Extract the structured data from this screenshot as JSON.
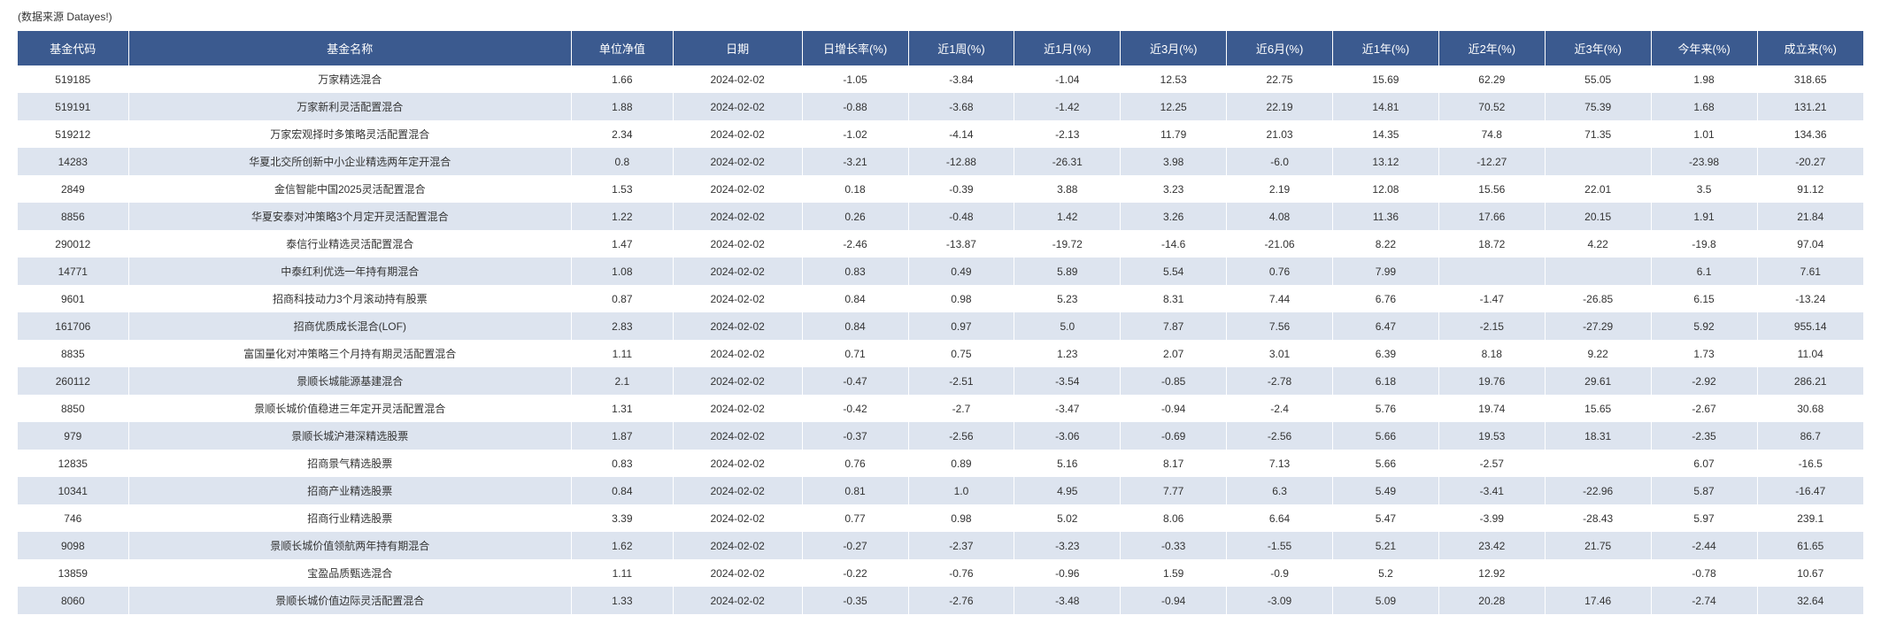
{
  "source_note": "(数据来源 Datayes!)",
  "colors": {
    "header_bg": "#3b5a8f",
    "header_text": "#ffffff",
    "row_odd_bg": "#ffffff",
    "row_even_bg": "#dde4ef",
    "cell_text": "#333333"
  },
  "table": {
    "columns": [
      "基金代码",
      "基金名称",
      "单位净值",
      "日期",
      "日增长率(%)",
      "近1周(%)",
      "近1月(%)",
      "近3月(%)",
      "近6月(%)",
      "近1年(%)",
      "近2年(%)",
      "近3年(%)",
      "今年来(%)",
      "成立来(%)"
    ],
    "column_widths": [
      "6%",
      "24%",
      "5.5%",
      "7%",
      "5.75%",
      "5.75%",
      "5.75%",
      "5.75%",
      "5.75%",
      "5.75%",
      "5.75%",
      "5.75%",
      "5.75%",
      "5.75%"
    ],
    "rows": [
      [
        "519185",
        "万家精选混合",
        "1.66",
        "2024-02-02",
        "-1.05",
        "-3.84",
        "-1.04",
        "12.53",
        "22.75",
        "15.69",
        "62.29",
        "55.05",
        "1.98",
        "318.65"
      ],
      [
        "519191",
        "万家新利灵活配置混合",
        "1.88",
        "2024-02-02",
        "-0.88",
        "-3.68",
        "-1.42",
        "12.25",
        "22.19",
        "14.81",
        "70.52",
        "75.39",
        "1.68",
        "131.21"
      ],
      [
        "519212",
        "万家宏观择时多策略灵活配置混合",
        "2.34",
        "2024-02-02",
        "-1.02",
        "-4.14",
        "-2.13",
        "11.79",
        "21.03",
        "14.35",
        "74.8",
        "71.35",
        "1.01",
        "134.36"
      ],
      [
        "14283",
        "华夏北交所创新中小企业精选两年定开混合",
        "0.8",
        "2024-02-02",
        "-3.21",
        "-12.88",
        "-26.31",
        "3.98",
        "-6.0",
        "13.12",
        "-12.27",
        "",
        "-23.98",
        "-20.27"
      ],
      [
        "2849",
        "金信智能中国2025灵活配置混合",
        "1.53",
        "2024-02-02",
        "0.18",
        "-0.39",
        "3.88",
        "3.23",
        "2.19",
        "12.08",
        "15.56",
        "22.01",
        "3.5",
        "91.12"
      ],
      [
        "8856",
        "华夏安泰对冲策略3个月定开灵活配置混合",
        "1.22",
        "2024-02-02",
        "0.26",
        "-0.48",
        "1.42",
        "3.26",
        "4.08",
        "11.36",
        "17.66",
        "20.15",
        "1.91",
        "21.84"
      ],
      [
        "290012",
        "泰信行业精选灵活配置混合",
        "1.47",
        "2024-02-02",
        "-2.46",
        "-13.87",
        "-19.72",
        "-14.6",
        "-21.06",
        "8.22",
        "18.72",
        "4.22",
        "-19.8",
        "97.04"
      ],
      [
        "14771",
        "中泰红利优选一年持有期混合",
        "1.08",
        "2024-02-02",
        "0.83",
        "0.49",
        "5.89",
        "5.54",
        "0.76",
        "7.99",
        "",
        "",
        "6.1",
        "7.61"
      ],
      [
        "9601",
        "招商科技动力3个月滚动持有股票",
        "0.87",
        "2024-02-02",
        "0.84",
        "0.98",
        "5.23",
        "8.31",
        "7.44",
        "6.76",
        "-1.47",
        "-26.85",
        "6.15",
        "-13.24"
      ],
      [
        "161706",
        "招商优质成长混合(LOF)",
        "2.83",
        "2024-02-02",
        "0.84",
        "0.97",
        "5.0",
        "7.87",
        "7.56",
        "6.47",
        "-2.15",
        "-27.29",
        "5.92",
        "955.14"
      ],
      [
        "8835",
        "富国量化对冲策略三个月持有期灵活配置混合",
        "1.11",
        "2024-02-02",
        "0.71",
        "0.75",
        "1.23",
        "2.07",
        "3.01",
        "6.39",
        "8.18",
        "9.22",
        "1.73",
        "11.04"
      ],
      [
        "260112",
        "景顺长城能源基建混合",
        "2.1",
        "2024-02-02",
        "-0.47",
        "-2.51",
        "-3.54",
        "-0.85",
        "-2.78",
        "6.18",
        "19.76",
        "29.61",
        "-2.92",
        "286.21"
      ],
      [
        "8850",
        "景顺长城价值稳进三年定开灵活配置混合",
        "1.31",
        "2024-02-02",
        "-0.42",
        "-2.7",
        "-3.47",
        "-0.94",
        "-2.4",
        "5.76",
        "19.74",
        "15.65",
        "-2.67",
        "30.68"
      ],
      [
        "979",
        "景顺长城沪港深精选股票",
        "1.87",
        "2024-02-02",
        "-0.37",
        "-2.56",
        "-3.06",
        "-0.69",
        "-2.56",
        "5.66",
        "19.53",
        "18.31",
        "-2.35",
        "86.7"
      ],
      [
        "12835",
        "招商景气精选股票",
        "0.83",
        "2024-02-02",
        "0.76",
        "0.89",
        "5.16",
        "8.17",
        "7.13",
        "5.66",
        "-2.57",
        "",
        "6.07",
        "-16.5"
      ],
      [
        "10341",
        "招商产业精选股票",
        "0.84",
        "2024-02-02",
        "0.81",
        "1.0",
        "4.95",
        "7.77",
        "6.3",
        "5.49",
        "-3.41",
        "-22.96",
        "5.87",
        "-16.47"
      ],
      [
        "746",
        "招商行业精选股票",
        "3.39",
        "2024-02-02",
        "0.77",
        "0.98",
        "5.02",
        "8.06",
        "6.64",
        "5.47",
        "-3.99",
        "-28.43",
        "5.97",
        "239.1"
      ],
      [
        "9098",
        "景顺长城价值领航两年持有期混合",
        "1.62",
        "2024-02-02",
        "-0.27",
        "-2.37",
        "-3.23",
        "-0.33",
        "-1.55",
        "5.21",
        "23.42",
        "21.75",
        "-2.44",
        "61.65"
      ],
      [
        "13859",
        "宝盈品质甄选混合",
        "1.11",
        "2024-02-02",
        "-0.22",
        "-0.76",
        "-0.96",
        "1.59",
        "-0.9",
        "5.2",
        "12.92",
        "",
        "-0.78",
        "10.67"
      ],
      [
        "8060",
        "景顺长城价值边际灵活配置混合",
        "1.33",
        "2024-02-02",
        "-0.35",
        "-2.76",
        "-3.48",
        "-0.94",
        "-3.09",
        "5.09",
        "20.28",
        "17.46",
        "-2.74",
        "32.64"
      ]
    ]
  }
}
